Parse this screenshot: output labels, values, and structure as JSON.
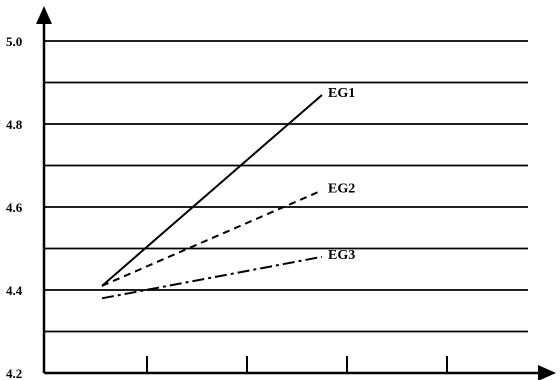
{
  "chart_data": {
    "type": "line",
    "title": "",
    "xlabel": "",
    "ylabel": "",
    "ylim": [
      4.2,
      5.0
    ],
    "yticks": [
      "4.2",
      "4.4",
      "4.6",
      "4.8",
      "5.0"
    ],
    "ygrid_step": 0.1,
    "x_tick_count": 4,
    "grid": "horizontal",
    "series": [
      {
        "name": "EG1",
        "style": "solid",
        "x": [
          1,
          2
        ],
        "values": [
          4.41,
          4.87
        ]
      },
      {
        "name": "EG2",
        "style": "dashed",
        "x": [
          1,
          2
        ],
        "values": [
          4.41,
          4.64
        ]
      },
      {
        "name": "EG3",
        "style": "dash-dot",
        "x": [
          1,
          2
        ],
        "values": [
          4.38,
          4.48
        ]
      }
    ],
    "colors": {
      "line": "#000000",
      "background": "#ffffff"
    }
  }
}
